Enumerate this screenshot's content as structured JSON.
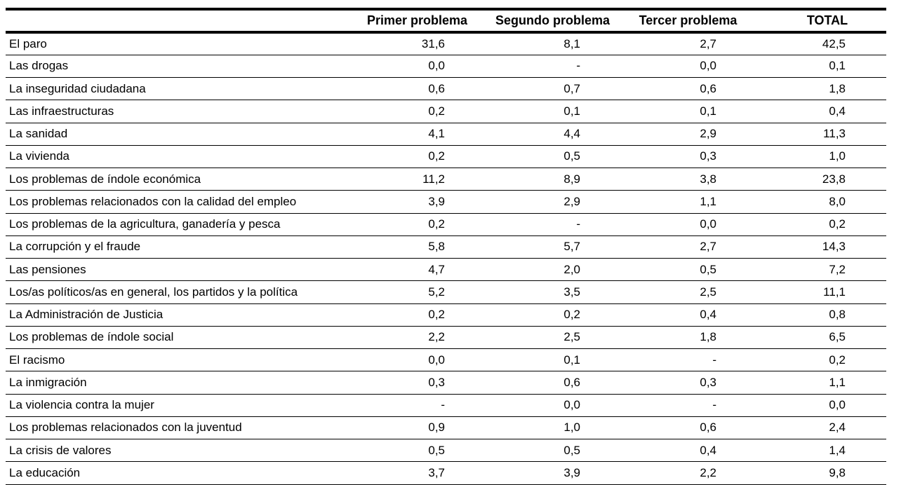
{
  "table": {
    "headers": {
      "label": "",
      "primer": "Primer problema",
      "segundo": "Segundo problema",
      "tercer": "Tercer problema",
      "total": "TOTAL"
    },
    "rows": [
      {
        "label": "El paro",
        "primer": "31,6",
        "segundo": "8,1",
        "tercer": "2,7",
        "total": "42,5"
      },
      {
        "label": "Las drogas",
        "primer": "0,0",
        "segundo": "-",
        "tercer": "0,0",
        "total": "0,1"
      },
      {
        "label": "La inseguridad ciudadana",
        "primer": "0,6",
        "segundo": "0,7",
        "tercer": "0,6",
        "total": "1,8"
      },
      {
        "label": "Las infraestructuras",
        "primer": "0,2",
        "segundo": "0,1",
        "tercer": "0,1",
        "total": "0,4"
      },
      {
        "label": "La sanidad",
        "primer": "4,1",
        "segundo": "4,4",
        "tercer": "2,9",
        "total": "11,3"
      },
      {
        "label": "La vivienda",
        "primer": "0,2",
        "segundo": "0,5",
        "tercer": "0,3",
        "total": "1,0"
      },
      {
        "label": "Los problemas de índole económica",
        "primer": "11,2",
        "segundo": "8,9",
        "tercer": "3,8",
        "total": "23,8"
      },
      {
        "label": "Los problemas relacionados con la calidad del empleo",
        "primer": "3,9",
        "segundo": "2,9",
        "tercer": "1,1",
        "total": "8,0"
      },
      {
        "label": "Los problemas de la agricultura, ganadería y pesca",
        "primer": "0,2",
        "segundo": "-",
        "tercer": "0,0",
        "total": "0,2"
      },
      {
        "label": "La corrupción y el fraude",
        "primer": "5,8",
        "segundo": "5,7",
        "tercer": "2,7",
        "total": "14,3"
      },
      {
        "label": "Las pensiones",
        "primer": "4,7",
        "segundo": "2,0",
        "tercer": "0,5",
        "total": "7,2"
      },
      {
        "label": "Los/as políticos/as en general, los partidos y la política",
        "primer": "5,2",
        "segundo": "3,5",
        "tercer": "2,5",
        "total": "11,1"
      },
      {
        "label": "La Administración de Justicia",
        "primer": "0,2",
        "segundo": "0,2",
        "tercer": "0,4",
        "total": "0,8"
      },
      {
        "label": "Los problemas de índole social",
        "primer": "2,2",
        "segundo": "2,5",
        "tercer": "1,8",
        "total": "6,5"
      },
      {
        "label": "El racismo",
        "primer": "0,0",
        "segundo": "0,1",
        "tercer": "-",
        "total": "0,2"
      },
      {
        "label": "La inmigración",
        "primer": "0,3",
        "segundo": "0,6",
        "tercer": "0,3",
        "total": "1,1"
      },
      {
        "label": "La violencia contra la mujer",
        "primer": "-",
        "segundo": "0,0",
        "tercer": "-",
        "total": "0,0"
      },
      {
        "label": "Los problemas relacionados con la juventud",
        "primer": "0,9",
        "segundo": "1,0",
        "tercer": "0,6",
        "total": "2,4"
      },
      {
        "label": "La crisis de valores",
        "primer": "0,5",
        "segundo": "0,5",
        "tercer": "0,4",
        "total": "1,4"
      },
      {
        "label": "La educación",
        "primer": "3,7",
        "segundo": "3,9",
        "tercer": "2,2",
        "total": "9,8"
      }
    ]
  }
}
